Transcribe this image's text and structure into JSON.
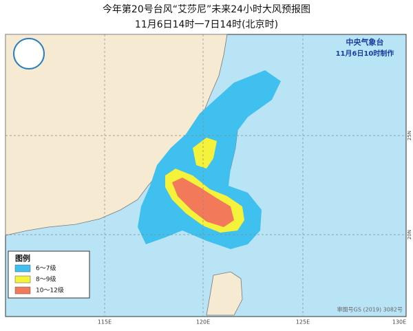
{
  "header": {
    "title": "今年第20号台风“艾莎尼”未来24小时大风预报图",
    "subtitle": "11月6日14时一7日14时(北京时)"
  },
  "issuer": {
    "agency": "中央气象台",
    "time": "11月6日10时制作"
  },
  "map": {
    "lon_labels": [
      "115E",
      "120E",
      "125E",
      "130E"
    ],
    "lat_labels": [
      "25N",
      "20N"
    ],
    "approval": "审图号GS (2019) 3082号"
  },
  "legend": {
    "title": "图例",
    "items": [
      {
        "label": "6～7级",
        "color": "#3fc0ee"
      },
      {
        "label": "8～9级",
        "color": "#f4f23a"
      },
      {
        "label": "10～12级",
        "color": "#f27a5a"
      }
    ]
  }
}
